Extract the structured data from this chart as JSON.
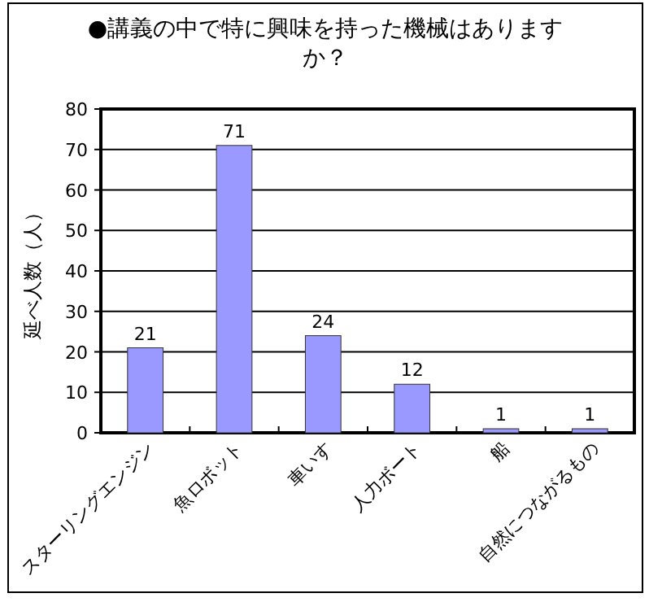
{
  "chart_data": {
    "type": "bar",
    "title": "●講義の中で特に興味を持った機械はありますか？",
    "ylabel": "延べ人数（人）",
    "categories": [
      "スターリングエンジン",
      "魚ロボット",
      "車いす",
      "人力ボート",
      "船",
      "自然につながるもの"
    ],
    "values": [
      21,
      71,
      24,
      12,
      1,
      1
    ],
    "color": "#9999ff",
    "ylim": [
      0,
      80
    ],
    "yticks": [
      0,
      10,
      20,
      30,
      40,
      50,
      60,
      70,
      80
    ],
    "grid": "y",
    "data_labels": true
  }
}
